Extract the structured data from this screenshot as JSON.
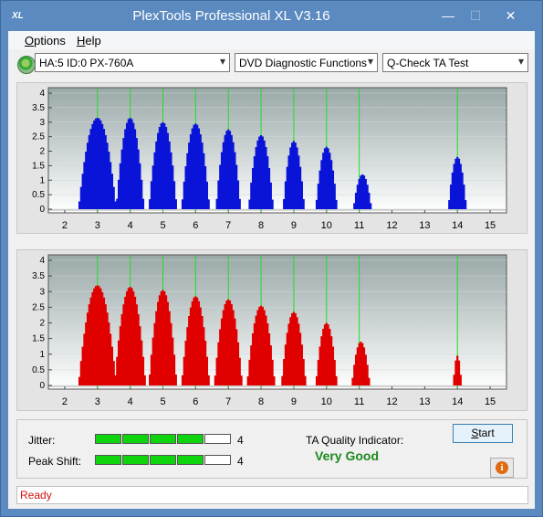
{
  "window": {
    "title": "PlexTools Professional XL V3.16",
    "icon_label": "XL"
  },
  "titlebar_buttons": {
    "minimize": "—",
    "maximize": "☐",
    "close": "✕"
  },
  "menu": {
    "options": "Options",
    "options_key": "O",
    "options_rest": "ptions",
    "help_key": "H",
    "help_rest": "elp"
  },
  "toolbar": {
    "drive": "HA:5 ID:0  PX-760A",
    "function": "DVD Diagnostic Functions",
    "test": "Q-Check TA Test",
    "arrow": "▾"
  },
  "chart_data": [
    {
      "type": "bar",
      "name": "top",
      "color": "#0a14d8",
      "xlim": [
        1.5,
        15.5
      ],
      "ylim": [
        0,
        4
      ],
      "x_ticks": [
        "2",
        "3",
        "4",
        "5",
        "6",
        "7",
        "8",
        "9",
        "10",
        "11",
        "12",
        "13",
        "14",
        "15"
      ],
      "y_ticks": [
        "4",
        "3.5",
        "3",
        "2.5",
        "2",
        "1.5",
        "1",
        "0.5",
        "0"
      ],
      "markers": [
        3,
        4,
        5,
        6,
        7,
        8,
        9,
        10,
        11,
        14
      ],
      "peaks": [
        {
          "center": 3.0,
          "height": 3.15,
          "half_width": 0.55
        },
        {
          "center": 4.0,
          "height": 3.15,
          "half_width": 0.4
        },
        {
          "center": 5.0,
          "height": 3.0,
          "half_width": 0.4
        },
        {
          "center": 6.0,
          "height": 2.95,
          "half_width": 0.4
        },
        {
          "center": 7.0,
          "height": 2.75,
          "half_width": 0.38
        },
        {
          "center": 8.0,
          "height": 2.55,
          "half_width": 0.38
        },
        {
          "center": 9.0,
          "height": 2.35,
          "half_width": 0.35
        },
        {
          "center": 10.0,
          "height": 2.15,
          "half_width": 0.33
        },
        {
          "center": 11.1,
          "height": 1.2,
          "half_width": 0.25
        },
        {
          "center": 14.0,
          "height": 1.8,
          "half_width": 0.25
        }
      ]
    },
    {
      "type": "bar",
      "name": "bottom",
      "color": "#e00000",
      "xlim": [
        1.5,
        15.5
      ],
      "ylim": [
        0,
        4
      ],
      "x_ticks": [
        "2",
        "3",
        "4",
        "5",
        "6",
        "7",
        "8",
        "9",
        "10",
        "11",
        "12",
        "13",
        "14",
        "15"
      ],
      "y_ticks": [
        "4",
        "3.5",
        "3",
        "2.5",
        "2",
        "1.5",
        "1",
        "0.5",
        "0"
      ],
      "markers": [
        3,
        4,
        5,
        6,
        7,
        8,
        9,
        10,
        11,
        14
      ],
      "peaks": [
        {
          "center": 3.0,
          "height": 3.2,
          "half_width": 0.55
        },
        {
          "center": 4.0,
          "height": 3.15,
          "half_width": 0.45
        },
        {
          "center": 5.0,
          "height": 3.05,
          "half_width": 0.42
        },
        {
          "center": 6.0,
          "height": 2.85,
          "half_width": 0.42
        },
        {
          "center": 7.0,
          "height": 2.75,
          "half_width": 0.4
        },
        {
          "center": 8.0,
          "height": 2.55,
          "half_width": 0.4
        },
        {
          "center": 9.0,
          "height": 2.35,
          "half_width": 0.38
        },
        {
          "center": 10.0,
          "height": 2.0,
          "half_width": 0.35
        },
        {
          "center": 11.05,
          "height": 1.4,
          "half_width": 0.25
        },
        {
          "center": 14.0,
          "height": 0.95,
          "half_width": 0.15
        }
      ]
    }
  ],
  "jitter": {
    "label": "Jitter:",
    "value": "4",
    "level": 4,
    "max": 5
  },
  "peak_shift": {
    "label": "Peak Shift:",
    "value": "4",
    "level": 4,
    "max": 5
  },
  "quality": {
    "label": "TA Quality Indicator:",
    "value": "Very Good",
    "color": "#1d8a1d"
  },
  "buttons": {
    "start": "Start",
    "start_key": "S",
    "start_rest": "tart",
    "info_icon": "i"
  },
  "status": {
    "text": "Ready",
    "color": "#d01010"
  }
}
